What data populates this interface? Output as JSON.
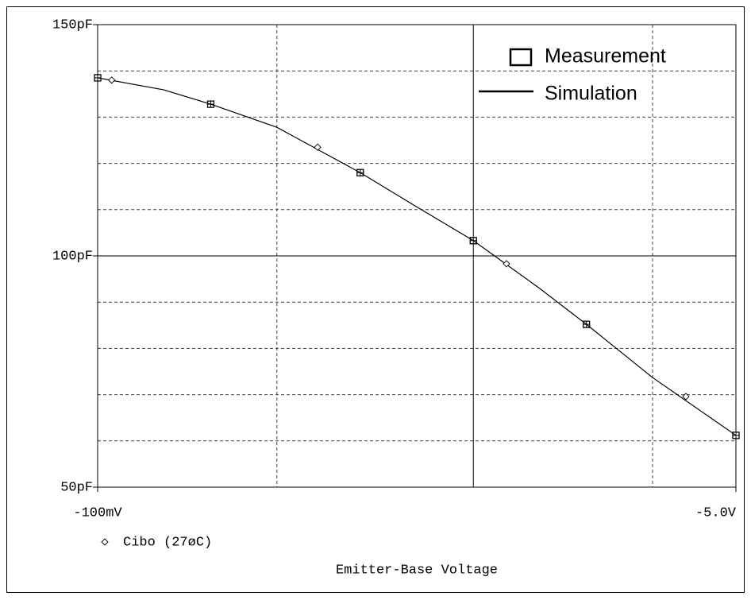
{
  "chart_data": {
    "type": "line",
    "xlabel": "Emitter-Base Voltage",
    "xscale": "log",
    "xlim": [
      -0.1,
      -5
    ],
    "ylim": [
      50,
      150
    ],
    "xticks": [
      {
        "value": -0.1,
        "label": "-100mV"
      },
      {
        "value": -0.3,
        "label": null
      },
      {
        "value": -1,
        "label": null
      },
      {
        "value": -3,
        "label": null
      },
      {
        "value": -5,
        "label": "-5.0V"
      }
    ],
    "yticks": [
      {
        "value": 50,
        "label": "50pF"
      },
      {
        "value": 60,
        "label": null
      },
      {
        "value": 70,
        "label": null
      },
      {
        "value": 80,
        "label": null
      },
      {
        "value": 90,
        "label": null
      },
      {
        "value": 100,
        "label": "100pF"
      },
      {
        "value": 110,
        "label": null
      },
      {
        "value": 120,
        "label": null
      },
      {
        "value": 130,
        "label": null
      },
      {
        "value": 140,
        "label": null
      },
      {
        "value": 150,
        "label": "150pF"
      }
    ],
    "grid": true,
    "series": [
      {
        "name": "Measurement",
        "marker": "square",
        "color": "#000000",
        "x": [
          -0.1,
          -0.2,
          -0.5,
          -1,
          -2,
          -5
        ],
        "values": [
          138.5,
          132.8,
          118.0,
          103.3,
          85.2,
          61.2
        ]
      },
      {
        "name": "Simulation",
        "marker": "none",
        "color": "#000000",
        "x": [
          -0.1,
          -0.15,
          -0.2,
          -0.3,
          -0.5,
          -0.7,
          -1,
          -1.5,
          -2,
          -3,
          -5
        ],
        "values": [
          138.5,
          135.9,
          132.8,
          127.8,
          118.0,
          110.8,
          103.3,
          93.0,
          85.2,
          73.7,
          61.2
        ]
      },
      {
        "name": "Cibo (27øC)",
        "marker": "diamond",
        "color": "#000000",
        "x": [
          -0.109,
          -0.385,
          -1.225,
          -3.68
        ],
        "values": [
          138.0,
          123.5,
          98.3,
          69.6
        ]
      }
    ]
  }
}
